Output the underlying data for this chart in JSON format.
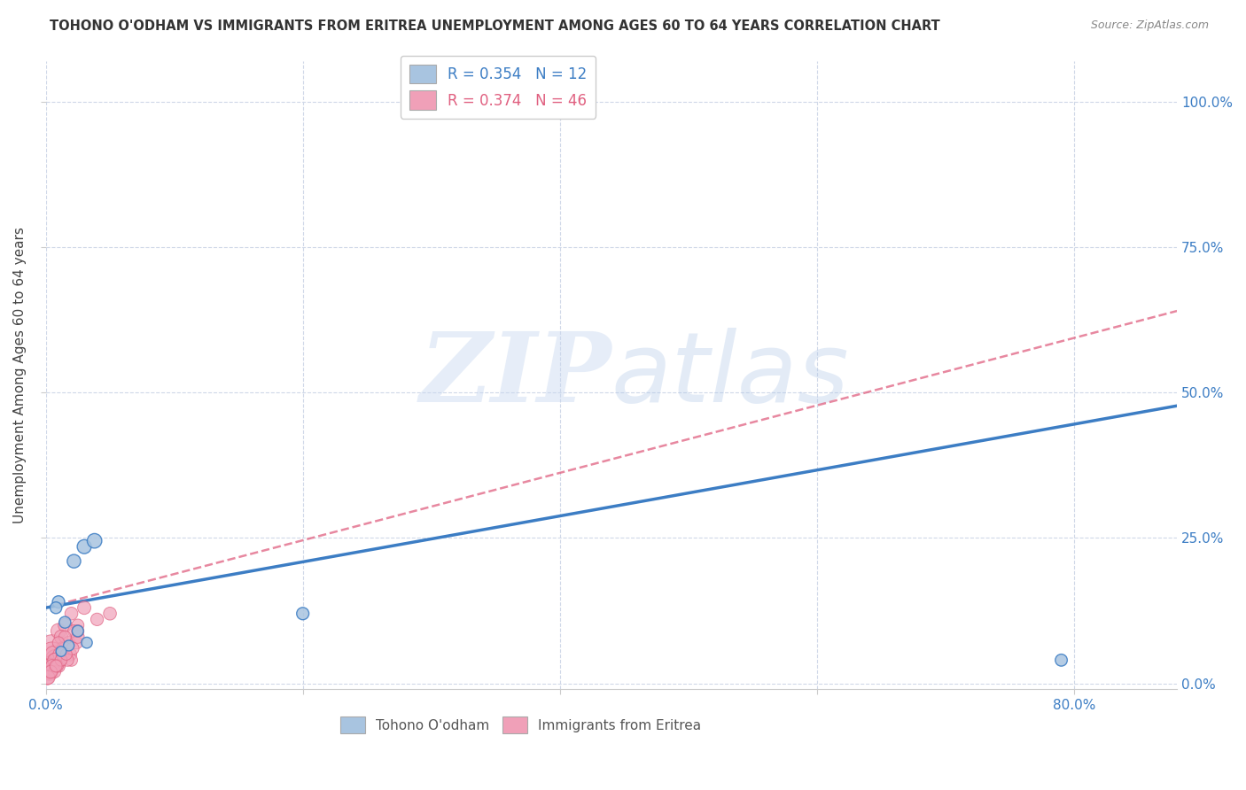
{
  "title": "TOHONO O'ODHAM VS IMMIGRANTS FROM ERITREA UNEMPLOYMENT AMONG AGES 60 TO 64 YEARS CORRELATION CHART",
  "source": "Source: ZipAtlas.com",
  "ylabel": "Unemployment Among Ages 60 to 64 years",
  "xlim": [
    0.0,
    0.88
  ],
  "ylim": [
    -0.01,
    1.07
  ],
  "xticks": [
    0.0,
    0.2,
    0.4,
    0.6,
    0.8
  ],
  "yticks": [
    0.0,
    0.25,
    0.5,
    0.75,
    1.0
  ],
  "xtick_labels_show": [
    "0.0%",
    "",
    "",
    "",
    "80.0%"
  ],
  "ytick_labels_right": [
    "0.0%",
    "25.0%",
    "50.0%",
    "75.0%",
    "100.0%"
  ],
  "blue_R": 0.354,
  "blue_N": 12,
  "pink_R": 0.374,
  "pink_N": 46,
  "blue_color": "#a8c4e0",
  "blue_line_color": "#3c7dc4",
  "pink_color": "#f0a0b8",
  "pink_line_color": "#e06080",
  "blue_label": "Tohono O'odham",
  "pink_label": "Immigrants from Eritrea",
  "watermark_zip": "ZIP",
  "watermark_atlas": "atlas",
  "background_color": "#ffffff",
  "grid_color": "#d0d8e8",
  "blue_scatter_x": [
    0.022,
    0.03,
    0.038,
    0.01,
    0.015,
    0.025,
    0.032,
    0.018,
    0.012,
    0.008,
    0.2,
    0.79
  ],
  "blue_scatter_y": [
    0.21,
    0.235,
    0.245,
    0.14,
    0.105,
    0.09,
    0.07,
    0.065,
    0.055,
    0.13,
    0.12,
    0.04
  ],
  "blue_scatter_size": [
    120,
    130,
    140,
    100,
    90,
    85,
    80,
    75,
    70,
    90,
    100,
    95
  ],
  "pink_scatter_x": [
    0.005,
    0.01,
    0.015,
    0.02,
    0.025,
    0.005,
    0.008,
    0.012,
    0.018,
    0.022,
    0.003,
    0.006,
    0.009,
    0.014,
    0.019,
    0.024,
    0.003,
    0.005,
    0.008,
    0.011,
    0.015,
    0.02,
    0.025,
    0.002,
    0.004,
    0.007,
    0.01,
    0.013,
    0.017,
    0.021,
    0.001,
    0.003,
    0.005,
    0.007,
    0.009,
    0.012,
    0.016,
    0.002,
    0.004,
    0.008,
    0.04,
    0.03,
    0.05,
    0.025,
    0.015,
    0.01
  ],
  "pink_scatter_y": [
    0.06,
    0.09,
    0.1,
    0.12,
    0.1,
    0.05,
    0.04,
    0.08,
    0.07,
    0.09,
    0.03,
    0.05,
    0.04,
    0.06,
    0.05,
    0.07,
    0.02,
    0.03,
    0.04,
    0.05,
    0.06,
    0.04,
    0.08,
    0.02,
    0.03,
    0.04,
    0.03,
    0.05,
    0.04,
    0.06,
    0.01,
    0.02,
    0.03,
    0.02,
    0.03,
    0.04,
    0.05,
    0.01,
    0.02,
    0.03,
    0.11,
    0.13,
    0.12,
    0.09,
    0.08,
    0.07
  ],
  "pink_scatter_size": [
    500,
    150,
    120,
    110,
    100,
    400,
    300,
    120,
    110,
    100,
    250,
    180,
    160,
    130,
    115,
    105,
    200,
    160,
    140,
    120,
    110,
    100,
    110,
    170,
    155,
    130,
    115,
    105,
    100,
    105,
    140,
    120,
    110,
    100,
    98,
    95,
    90,
    120,
    110,
    100,
    105,
    115,
    110,
    100,
    98,
    95
  ],
  "blue_line_x": [
    0.0,
    0.88
  ],
  "blue_line_y": [
    0.13,
    0.477
  ],
  "pink_line_x": [
    0.0,
    0.88
  ],
  "pink_line_y": [
    0.13,
    0.64
  ]
}
